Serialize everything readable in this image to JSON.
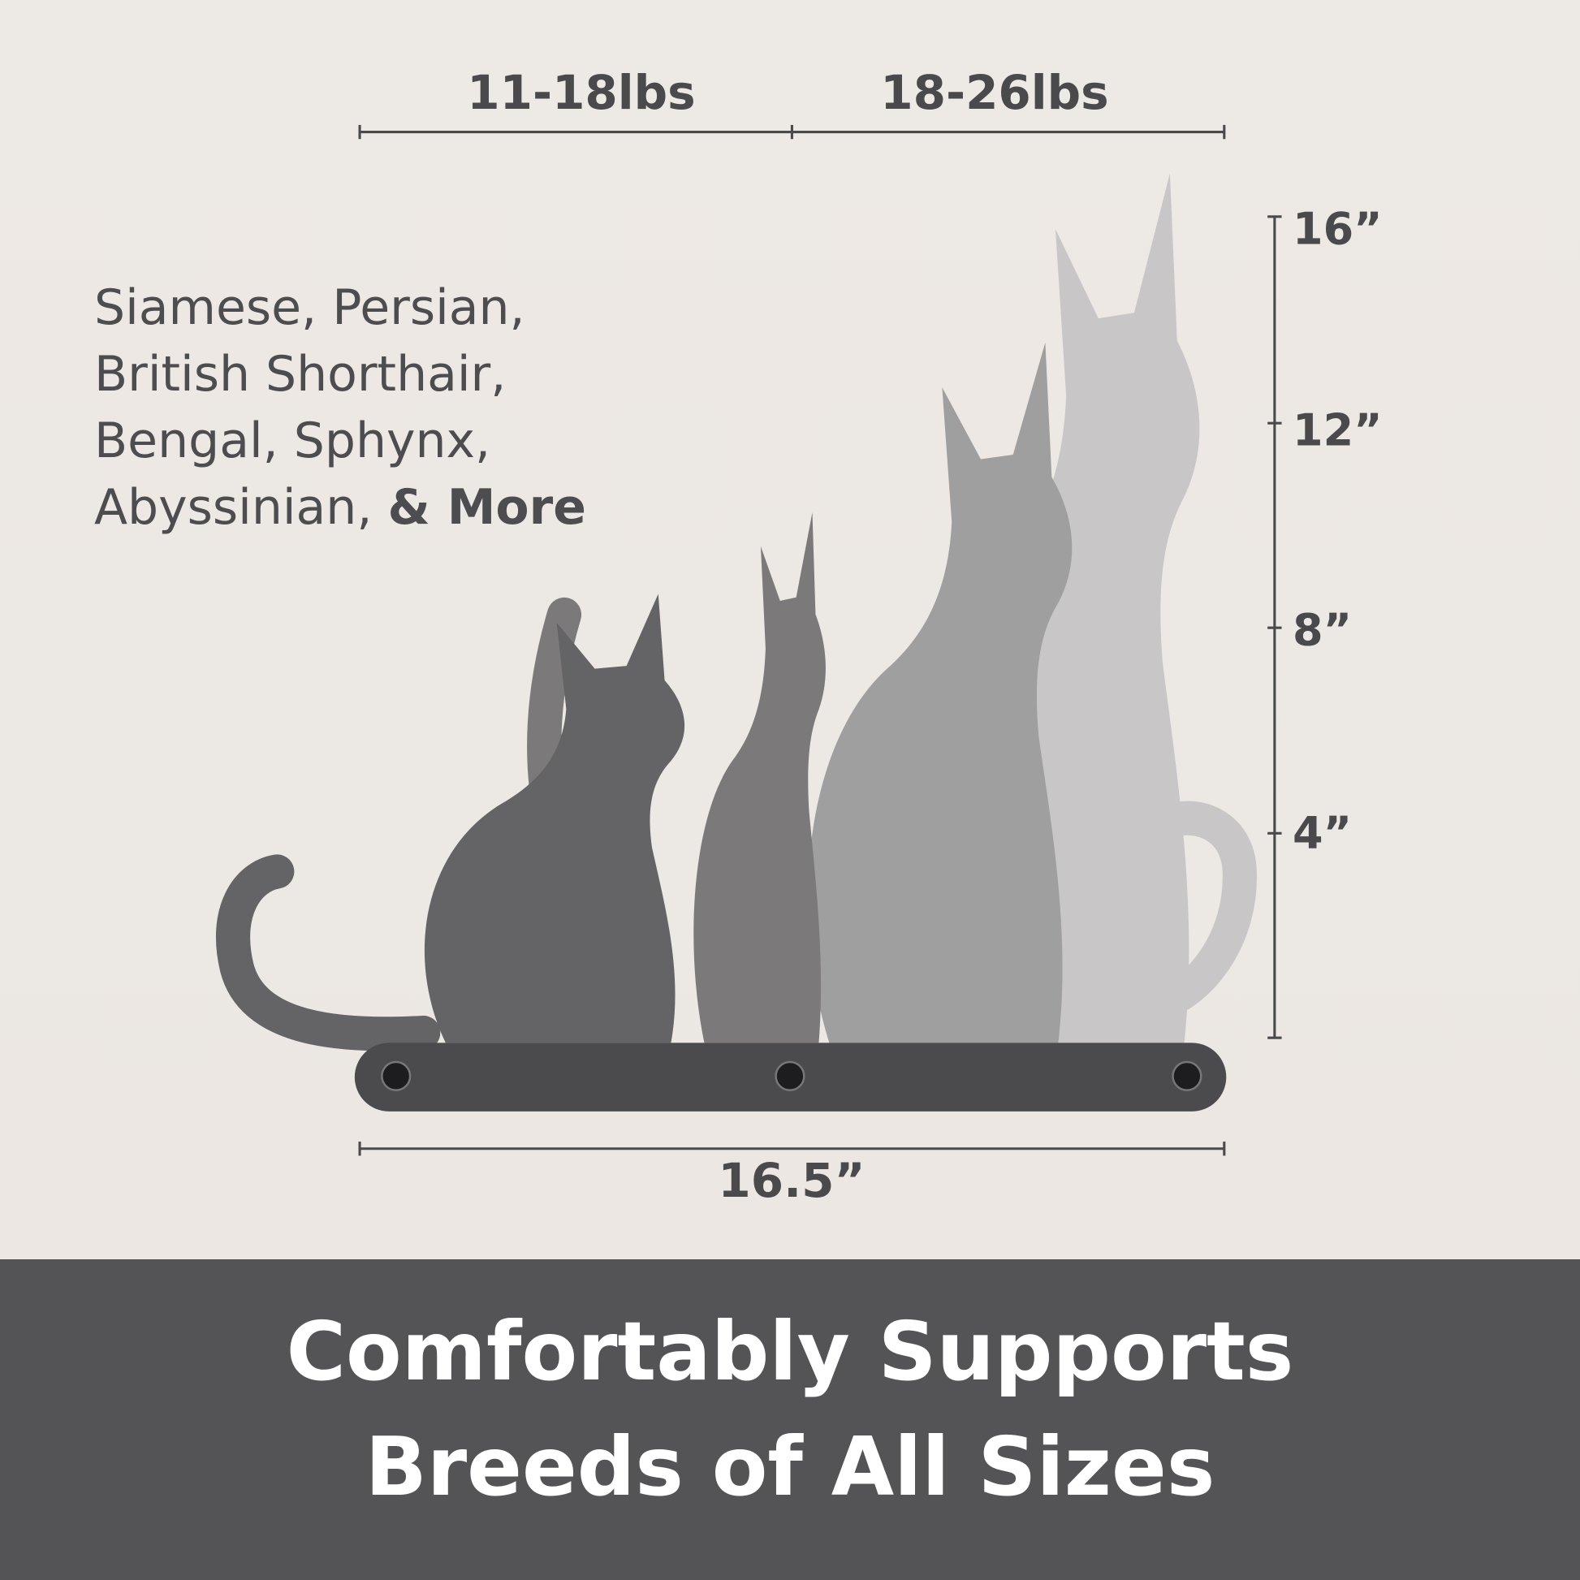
{
  "weights": {
    "left": "11-18lbs",
    "right": "18-26lbs"
  },
  "height_scale": [
    "16”",
    "12”",
    "8”",
    "4”"
  ],
  "breeds": {
    "lines": [
      "Siamese, Persian,",
      "British Shorthair,",
      "Bengal, Sphynx,",
      "Abyssinian,"
    ],
    "emphasis": "& More"
  },
  "width_label": "16.5”",
  "banner": {
    "line1": "Comfortably Supports",
    "line2": "Breeds of All Sizes"
  },
  "colors": {
    "banner": "#545456",
    "text": "#4a4a4c",
    "board": "#4b4b4d",
    "cats": [
      "#646366",
      "#7b797a",
      "#a09fa0",
      "#c8c6c7"
    ]
  }
}
